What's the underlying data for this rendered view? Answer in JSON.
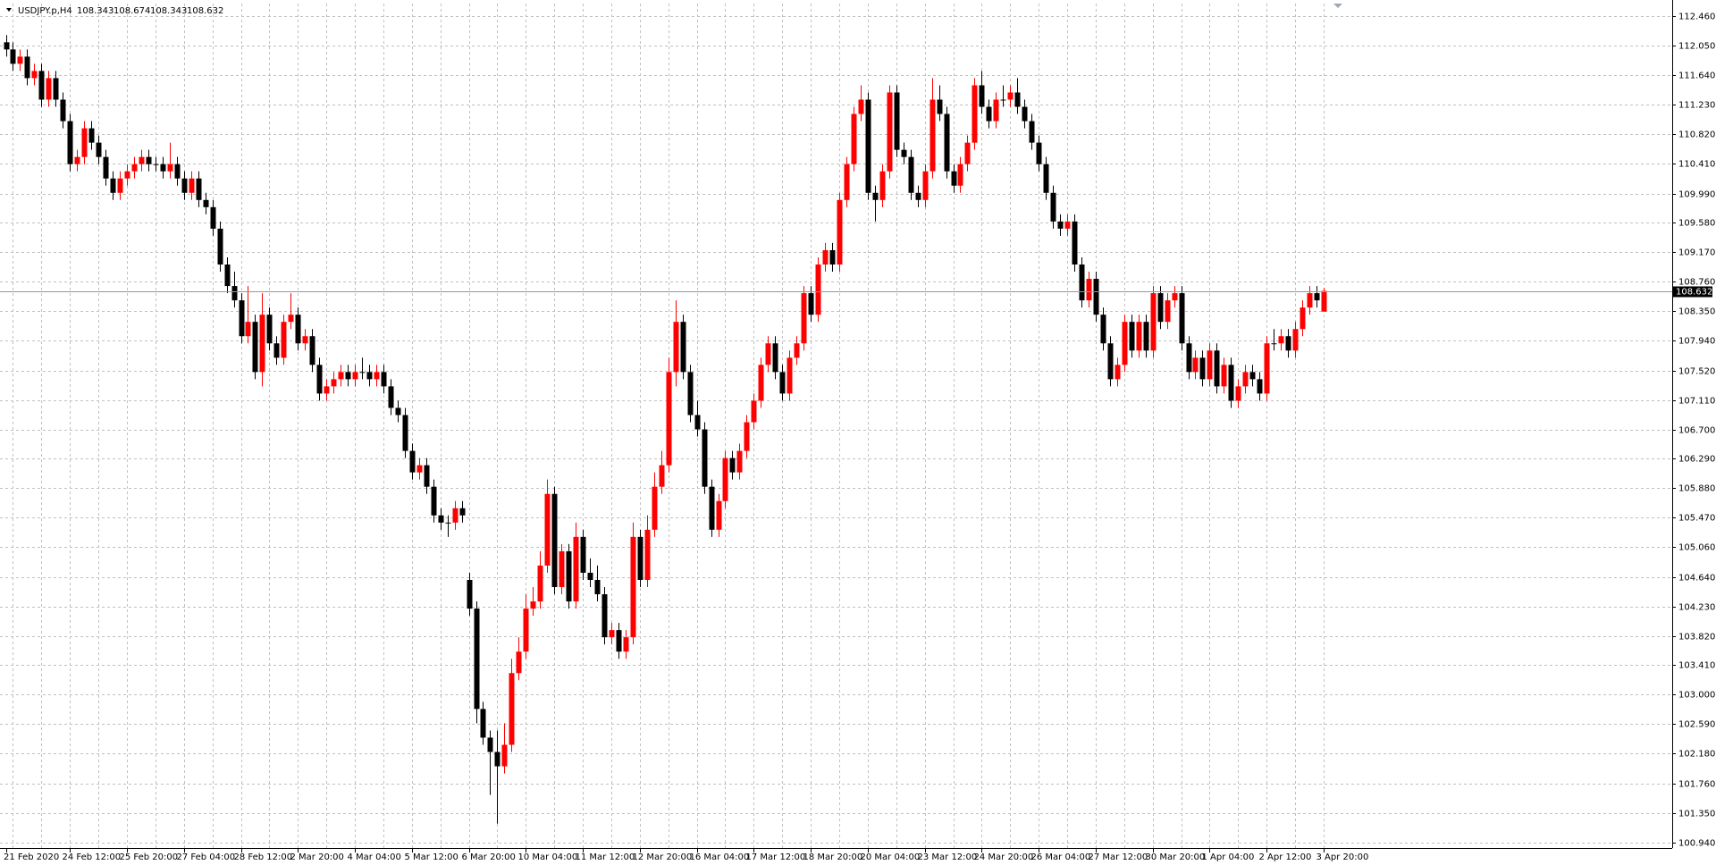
{
  "chart_data": {
    "type": "candlestick",
    "title": "USDJPY.p,H4",
    "categories": [
      "21 Feb 2020",
      null,
      null,
      null,
      null,
      null,
      null,
      null,
      null,
      "24 Feb 12:00",
      null,
      null,
      null,
      null,
      null,
      null,
      null,
      "25 Feb 20:00",
      null,
      null,
      null,
      null,
      null,
      null,
      null,
      "27 Feb 04:00",
      null,
      null,
      null,
      null,
      null,
      null,
      null,
      "28 Feb 12:00",
      null,
      null,
      null,
      null,
      null,
      null,
      null,
      "2 Mar 20:00",
      null,
      null,
      null,
      null,
      null,
      null,
      null,
      "4 Mar 04:00",
      null,
      null,
      null,
      null,
      null,
      null,
      null,
      "5 Mar 12:00",
      null,
      null,
      null,
      null,
      null,
      null,
      null,
      "6 Mar 20:00",
      null,
      null,
      null,
      null,
      null,
      null,
      null,
      "10 Mar 04:00",
      null,
      null,
      null,
      null,
      null,
      null,
      null,
      "11 Mar 12:00",
      null,
      null,
      null,
      null,
      null,
      null,
      null,
      "12 Mar 20:00",
      null,
      null,
      null,
      null,
      null,
      null,
      null,
      "16 Mar 04:00",
      null,
      null,
      null,
      null,
      null,
      null,
      null,
      "17 Mar 12:00",
      null,
      null,
      null,
      null,
      null,
      null,
      null,
      "18 Mar 20:00",
      null,
      null,
      null,
      null,
      null,
      null,
      null,
      "20 Mar 04:00",
      null,
      null,
      null,
      null,
      null,
      null,
      null,
      "23 Mar 12:00",
      null,
      null,
      null,
      null,
      null,
      null,
      null,
      "24 Mar 20:00",
      null,
      null,
      null,
      null,
      null,
      null,
      null,
      "26 Mar 04:00",
      null,
      null,
      null,
      null,
      null,
      null,
      null,
      "27 Mar 12:00",
      null,
      null,
      null,
      null,
      null,
      null,
      null,
      "30 Mar 20:00",
      null,
      null,
      null,
      null,
      null,
      null,
      null,
      "1 Apr 04:00",
      null,
      null,
      null,
      null,
      null,
      null,
      null,
      "2 Apr 12:00",
      null,
      null,
      null,
      null,
      null,
      null,
      null,
      "3 Apr 20:00"
    ],
    "open": [
      112.1,
      112.0,
      111.8,
      111.9,
      111.6,
      111.7,
      111.3,
      111.6,
      111.3,
      111.0,
      110.4,
      110.5,
      110.9,
      110.7,
      110.5,
      110.2,
      110.0,
      110.2,
      110.3,
      110.4,
      110.5,
      110.4,
      110.4,
      110.3,
      110.4,
      110.2,
      110.0,
      110.2,
      109.9,
      109.8,
      109.5,
      109.0,
      108.7,
      108.5,
      108.0,
      108.2,
      107.5,
      108.3,
      107.9,
      107.7,
      108.2,
      108.3,
      107.9,
      108.0,
      107.6,
      107.2,
      107.3,
      107.4,
      107.5,
      107.4,
      107.5,
      107.5,
      107.4,
      107.5,
      107.3,
      107.0,
      106.9,
      106.4,
      106.1,
      106.2,
      105.9,
      105.5,
      105.4,
      105.4,
      105.6,
      104.6,
      104.2,
      102.8,
      102.4,
      102.2,
      102.0,
      102.3,
      103.3,
      103.6,
      104.2,
      104.3,
      104.8,
      105.8,
      104.5,
      105.0,
      104.3,
      105.2,
      104.7,
      104.6,
      104.4,
      103.8,
      103.9,
      103.6,
      103.8,
      105.2,
      104.6,
      105.3,
      105.9,
      106.2,
      107.5,
      108.2,
      107.5,
      106.9,
      106.7,
      105.9,
      105.3,
      105.7,
      106.3,
      106.1,
      106.4,
      106.8,
      107.1,
      107.6,
      107.9,
      107.5,
      107.2,
      107.7,
      107.9,
      108.6,
      108.3,
      109.0,
      109.2,
      109.0,
      109.9,
      110.4,
      111.1,
      111.3,
      110.0,
      109.9,
      110.3,
      111.4,
      110.6,
      110.5,
      110.0,
      109.9,
      110.3,
      111.3,
      111.1,
      110.3,
      110.1,
      110.4,
      110.7,
      111.5,
      111.2,
      111.0,
      111.3,
      111.3,
      111.4,
      111.2,
      111.0,
      110.7,
      110.4,
      110.0,
      109.6,
      109.5,
      109.6,
      109.0,
      108.5,
      108.8,
      108.3,
      107.9,
      107.4,
      107.6,
      108.2,
      107.8,
      108.2,
      107.8,
      108.6,
      108.2,
      108.5,
      108.6,
      107.9,
      107.5,
      107.7,
      107.4,
      107.8,
      107.3,
      107.6,
      107.1,
      107.3,
      107.5,
      107.4,
      107.2,
      107.9,
      107.9,
      108.0,
      107.8,
      108.1,
      108.4,
      108.6,
      108.343
    ],
    "high": [
      112.2,
      112.1,
      112.0,
      112.0,
      111.8,
      111.8,
      111.7,
      111.7,
      111.4,
      111.1,
      110.6,
      111.0,
      111.0,
      110.8,
      110.6,
      110.3,
      110.3,
      110.4,
      110.5,
      110.6,
      110.6,
      110.5,
      110.5,
      110.7,
      110.5,
      110.3,
      110.3,
      110.3,
      110.0,
      109.9,
      109.6,
      109.1,
      108.9,
      108.6,
      108.7,
      108.3,
      108.6,
      108.4,
      108.0,
      108.3,
      108.6,
      108.4,
      108.1,
      108.1,
      107.7,
      107.4,
      107.5,
      107.6,
      107.6,
      107.6,
      107.7,
      107.6,
      107.6,
      107.6,
      107.4,
      107.1,
      107.0,
      106.5,
      106.3,
      106.3,
      106.0,
      105.6,
      105.5,
      105.7,
      105.7,
      104.7,
      104.3,
      102.9,
      102.5,
      102.5,
      102.6,
      103.5,
      103.8,
      104.4,
      104.5,
      105.0,
      106.0,
      105.9,
      105.1,
      105.1,
      105.4,
      105.3,
      104.9,
      104.8,
      104.5,
      104.0,
      104.0,
      103.9,
      105.4,
      105.3,
      105.5,
      106.1,
      106.4,
      107.7,
      108.5,
      108.3,
      107.6,
      107.1,
      106.8,
      106.0,
      105.8,
      106.4,
      106.4,
      106.5,
      106.9,
      107.2,
      107.7,
      108.0,
      108.0,
      107.6,
      107.8,
      108.0,
      108.7,
      108.7,
      109.1,
      109.3,
      109.3,
      110.0,
      110.5,
      111.2,
      111.5,
      111.4,
      110.1,
      110.4,
      111.5,
      111.5,
      110.7,
      110.6,
      110.1,
      110.4,
      111.6,
      111.5,
      111.2,
      110.4,
      110.5,
      110.8,
      111.6,
      111.7,
      111.3,
      111.4,
      111.5,
      111.5,
      111.6,
      111.3,
      111.1,
      110.8,
      110.5,
      110.1,
      109.7,
      109.7,
      109.7,
      109.1,
      108.9,
      108.9,
      108.4,
      108.0,
      107.7,
      108.3,
      108.3,
      108.3,
      108.3,
      108.7,
      108.7,
      108.6,
      108.7,
      108.7,
      108.0,
      107.8,
      107.8,
      107.9,
      107.9,
      107.7,
      107.7,
      107.4,
      107.6,
      107.6,
      107.5,
      108.0,
      108.1,
      108.1,
      108.1,
      108.2,
      108.5,
      108.7,
      108.7,
      108.674
    ],
    "low": [
      111.9,
      111.7,
      111.7,
      111.5,
      111.5,
      111.2,
      111.2,
      111.2,
      110.9,
      110.3,
      110.3,
      110.4,
      110.6,
      110.4,
      110.1,
      109.9,
      109.9,
      110.1,
      110.2,
      110.3,
      110.3,
      110.3,
      110.2,
      110.2,
      110.1,
      109.9,
      109.9,
      109.8,
      109.7,
      109.4,
      108.9,
      108.6,
      108.4,
      107.9,
      107.9,
      107.4,
      107.3,
      107.8,
      107.6,
      107.6,
      108.1,
      107.8,
      107.8,
      107.5,
      107.1,
      107.1,
      107.2,
      107.3,
      107.3,
      107.3,
      107.4,
      107.3,
      107.3,
      107.2,
      106.9,
      106.8,
      106.3,
      106.0,
      106.0,
      105.8,
      105.4,
      105.3,
      105.2,
      105.3,
      105.4,
      104.1,
      102.6,
      102.3,
      101.6,
      101.2,
      101.9,
      102.2,
      103.2,
      103.5,
      104.1,
      104.2,
      104.7,
      104.4,
      104.4,
      104.2,
      104.2,
      104.6,
      104.5,
      104.3,
      103.7,
      103.7,
      103.5,
      103.5,
      103.7,
      104.5,
      104.5,
      105.2,
      105.8,
      106.1,
      107.3,
      107.4,
      106.8,
      106.6,
      105.8,
      105.2,
      105.2,
      105.6,
      106.0,
      106.0,
      106.3,
      106.7,
      107.0,
      107.5,
      107.4,
      107.1,
      107.1,
      107.6,
      107.8,
      108.2,
      108.2,
      108.9,
      108.9,
      108.9,
      109.8,
      110.3,
      111.0,
      109.9,
      109.6,
      109.8,
      110.2,
      110.5,
      110.4,
      109.9,
      109.8,
      109.8,
      110.2,
      111.0,
      110.2,
      110.0,
      110.0,
      110.3,
      110.6,
      111.1,
      110.9,
      110.9,
      111.2,
      111.2,
      111.1,
      110.9,
      110.6,
      110.3,
      109.9,
      109.5,
      109.4,
      109.4,
      108.9,
      108.4,
      108.4,
      108.2,
      107.8,
      107.3,
      107.3,
      107.5,
      107.7,
      107.7,
      107.7,
      107.7,
      108.1,
      108.1,
      108.4,
      107.8,
      107.4,
      107.4,
      107.3,
      107.3,
      107.2,
      107.2,
      107.0,
      107.0,
      107.2,
      107.3,
      107.1,
      107.1,
      107.8,
      107.8,
      107.7,
      107.7,
      108.0,
      108.3,
      108.4,
      108.343
    ],
    "close": [
      112.0,
      111.8,
      111.9,
      111.6,
      111.7,
      111.3,
      111.6,
      111.3,
      111.0,
      110.4,
      110.5,
      110.9,
      110.7,
      110.5,
      110.2,
      110.0,
      110.2,
      110.3,
      110.4,
      110.5,
      110.4,
      110.4,
      110.3,
      110.4,
      110.2,
      110.0,
      110.2,
      109.9,
      109.8,
      109.5,
      109.0,
      108.7,
      108.5,
      108.0,
      108.2,
      107.5,
      108.3,
      107.9,
      107.7,
      108.2,
      108.3,
      107.9,
      108.0,
      107.6,
      107.2,
      107.3,
      107.4,
      107.5,
      107.4,
      107.5,
      107.5,
      107.4,
      107.5,
      107.3,
      107.0,
      106.9,
      106.4,
      106.1,
      106.2,
      105.9,
      105.5,
      105.4,
      105.4,
      105.6,
      105.5,
      104.2,
      102.8,
      102.4,
      102.2,
      102.0,
      102.3,
      103.3,
      103.6,
      104.2,
      104.3,
      104.8,
      105.8,
      104.5,
      105.0,
      104.3,
      105.2,
      104.7,
      104.6,
      104.4,
      103.8,
      103.9,
      103.6,
      103.8,
      105.2,
      104.6,
      105.3,
      105.9,
      106.2,
      107.5,
      108.2,
      107.5,
      106.9,
      106.7,
      105.9,
      105.3,
      105.7,
      106.3,
      106.1,
      106.4,
      106.8,
      107.1,
      107.6,
      107.9,
      107.5,
      107.2,
      107.7,
      107.9,
      108.6,
      108.3,
      109.0,
      109.2,
      109.0,
      109.9,
      110.4,
      111.1,
      111.3,
      110.0,
      109.9,
      110.3,
      111.4,
      110.6,
      110.5,
      110.0,
      109.9,
      110.3,
      111.3,
      111.1,
      110.3,
      110.1,
      110.4,
      110.7,
      111.5,
      111.2,
      111.0,
      111.3,
      111.3,
      111.4,
      111.2,
      111.0,
      110.7,
      110.4,
      110.0,
      109.6,
      109.5,
      109.6,
      109.0,
      108.5,
      108.8,
      108.3,
      107.9,
      107.4,
      107.6,
      108.2,
      107.8,
      108.2,
      107.8,
      108.6,
      108.2,
      108.5,
      108.6,
      107.9,
      107.5,
      107.7,
      107.4,
      107.8,
      107.3,
      107.6,
      107.1,
      107.3,
      107.5,
      107.4,
      107.2,
      107.9,
      107.9,
      108.0,
      107.8,
      108.1,
      108.4,
      108.6,
      108.5,
      108.632
    ],
    "up_color": "#ff0000",
    "down_color": "#000000",
    "ylim": [
      100.86,
      112.64
    ],
    "yticks": [
      {
        "value": 112.46,
        "label": "112.460"
      },
      {
        "value": 112.05,
        "label": "112.050"
      },
      {
        "value": 111.64,
        "label": "111.640"
      },
      {
        "value": 111.23,
        "label": "111.230"
      },
      {
        "value": 110.82,
        "label": "110.820"
      },
      {
        "value": 110.41,
        "label": "110.410"
      },
      {
        "value": 109.99,
        "label": "109.990"
      },
      {
        "value": 109.58,
        "label": "109.580"
      },
      {
        "value": 109.17,
        "label": "109.170"
      },
      {
        "value": 108.76,
        "label": "108.760"
      },
      {
        "value": 108.35,
        "label": "108.350"
      },
      {
        "value": 107.94,
        "label": "107.940"
      },
      {
        "value": 107.52,
        "label": "107.520"
      },
      {
        "value": 107.11,
        "label": "107.110"
      },
      {
        "value": 106.7,
        "label": "106.700"
      },
      {
        "value": 106.29,
        "label": "106.290"
      },
      {
        "value": 105.88,
        "label": "105.880"
      },
      {
        "value": 105.47,
        "label": "105.470"
      },
      {
        "value": 105.06,
        "label": "105.060"
      },
      {
        "value": 104.64,
        "label": "104.640"
      },
      {
        "value": 104.23,
        "label": "104.230"
      },
      {
        "value": 103.82,
        "label": "103.820"
      },
      {
        "value": 103.41,
        "label": "103.410"
      },
      {
        "value": 103.0,
        "label": "103.000"
      },
      {
        "value": 102.59,
        "label": "102.590"
      },
      {
        "value": 102.18,
        "label": "102.180"
      },
      {
        "value": 101.76,
        "label": "101.760"
      },
      {
        "value": 101.35,
        "label": "101.350"
      },
      {
        "value": 100.94,
        "label": "100.940"
      }
    ],
    "grid": true
  }
}
